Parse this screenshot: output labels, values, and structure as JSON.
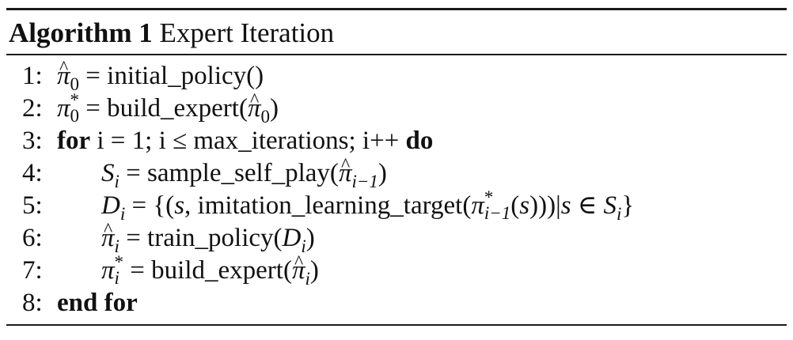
{
  "caption": {
    "label": "Algorithm 1",
    "title": "Expert Iteration"
  },
  "lines": [
    {
      "num": "1:",
      "text": "π̂0 = initial_policy()"
    },
    {
      "num": "2:",
      "text": "π*0 = build_expert(π̂0)"
    },
    {
      "num": "3:",
      "kw_for": "for",
      "text": "i = 1; i ≤ max_iterations; i++",
      "kw_do": "do"
    },
    {
      "num": "4:",
      "text": "Si = sample_self_play(π̂i−1)"
    },
    {
      "num": "5:",
      "text": "Di = {(s, imitation_learning_target(π*i−1(s)))|s ∈ Si}"
    },
    {
      "num": "6:",
      "text": "π̂i = train_policy(Di)"
    },
    {
      "num": "7:",
      "text": "π*i = build_expert(π̂i)"
    },
    {
      "num": "8:",
      "kw_end": "end for"
    }
  ],
  "tokens": {
    "pi": "π",
    "hatpi": "π",
    "star": "*",
    "zero": "0",
    "i": "i",
    "im1": "i−1",
    "S": "S",
    "D": "D",
    "s": "s",
    "initial_policy": "= initial_policy()",
    "build_expert": "= build_expert(",
    "close": ")",
    "loop_text": "i = 1; i ≤ max_iterations; i++",
    "sample_self_play": "= sample_self_play(",
    "imitation_open": "= {(",
    "imitation_mid": ", imitation_learning_target(",
    "imitation_open2": "(",
    "imitation_close": ")))|",
    "in": " ∈ ",
    "brace_close": "}",
    "train_policy": "= train_policy(",
    "comma_space": ", "
  }
}
